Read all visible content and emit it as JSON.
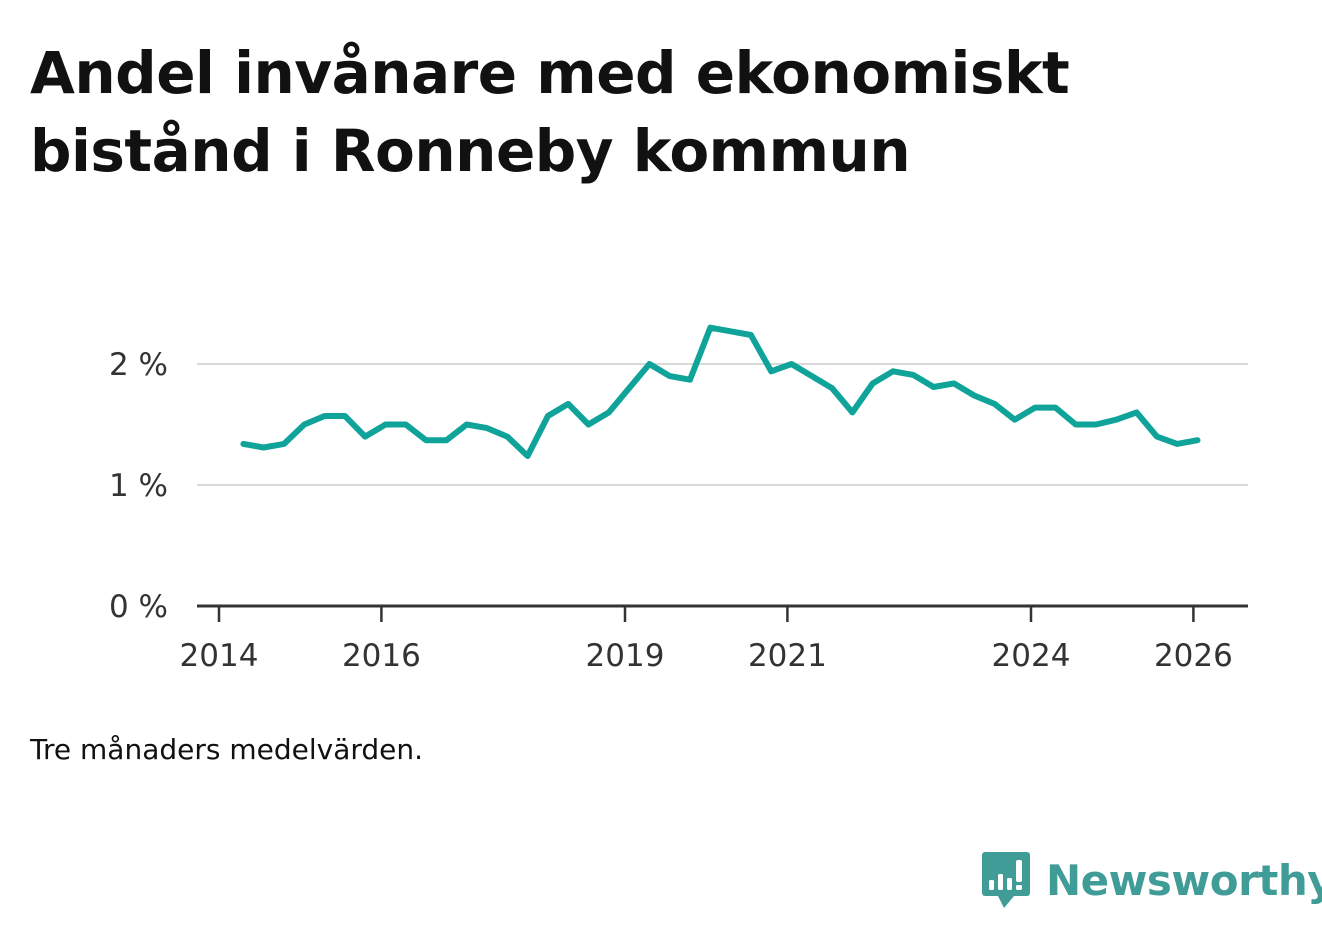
{
  "chart_data": {
    "type": "line",
    "title": "Andel invånare med ekonomiskt bistånd i Ronneby kommun",
    "note": "Tre månaders medelvärden.",
    "color": "#0fa39a",
    "ylim": [
      0,
      2.5
    ],
    "y_ticks": [
      0,
      1,
      2
    ],
    "y_tick_labels": [
      "0 %",
      "1 %",
      "2 %"
    ],
    "x_ticks": [
      2014,
      2016,
      2019,
      2021,
      2024,
      2026
    ],
    "x_tick_labels": [
      "2014",
      "2016",
      "2019",
      "2021",
      "2024",
      "2026"
    ],
    "xlabel": "",
    "ylabel": "",
    "series": [
      {
        "name": "Andel invånare med ekonomiskt bistånd",
        "x": [
          2014.3,
          2014.55,
          2014.8,
          2015.05,
          2015.3,
          2015.55,
          2015.8,
          2016.05,
          2016.3,
          2016.55,
          2016.8,
          2017.05,
          2017.3,
          2017.55,
          2017.8,
          2018.05,
          2018.3,
          2018.55,
          2018.8,
          2019.05,
          2019.3,
          2019.55,
          2019.8,
          2020.05,
          2020.3,
          2020.55,
          2020.8,
          2021.05,
          2021.3,
          2021.55,
          2021.8,
          2022.05,
          2022.3,
          2022.55,
          2022.8,
          2023.05,
          2023.3,
          2023.55,
          2023.8,
          2024.05,
          2024.3,
          2024.55,
          2024.8,
          2025.05,
          2025.3,
          2025.55,
          2025.8,
          2026.05
        ],
        "values": [
          1.34,
          1.31,
          1.34,
          1.5,
          1.57,
          1.57,
          1.4,
          1.5,
          1.5,
          1.37,
          1.37,
          1.5,
          1.47,
          1.4,
          1.24,
          1.57,
          1.67,
          1.5,
          1.6,
          1.8,
          2.0,
          1.9,
          1.87,
          2.3,
          2.27,
          2.24,
          1.94,
          2.0,
          1.9,
          1.8,
          1.6,
          1.84,
          1.94,
          1.91,
          1.81,
          1.84,
          1.74,
          1.67,
          1.54,
          1.64,
          1.64,
          1.5,
          1.5,
          1.54,
          1.6,
          1.4,
          1.34,
          1.37
        ]
      }
    ]
  },
  "brand": {
    "name": "Newsworthy",
    "color": "#3f9c97",
    "icon": "chart-speech-bubble-icon"
  }
}
